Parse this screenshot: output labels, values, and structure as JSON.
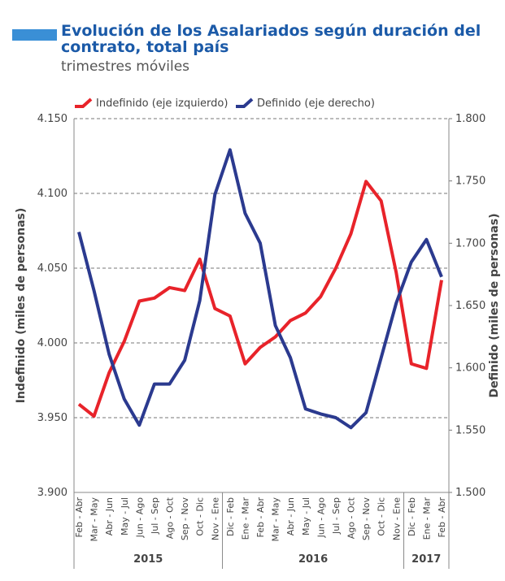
{
  "chart_data": {
    "type": "line",
    "title": "Evolución de los Asalariados según duración del contrato, total país",
    "subtitle": "trimestres móviles",
    "y_label": "Indefinido (miles de personas)",
    "y2_label": "Definido (miles de personas)",
    "categories": [
      "Feb - Abr",
      "Mar - May",
      "Abr - Jun",
      "May - Jul",
      "Jun - Ago",
      "Jul - Sep",
      "Ago - Oct",
      "Sep - Nov",
      "Oct - Dic",
      "Nov - Ene",
      "Dic - Feb",
      "Ene - Mar",
      "Feb - Abr",
      "Mar - May",
      "Abr - Jun",
      "May - Jul",
      "Jun - Ago",
      "Jul - Sep",
      "Ago - Oct",
      "Sep - Nov",
      "Oct - Dic",
      "Nov - Ene",
      "Dic - Feb",
      "Ene - Mar",
      "Feb - Abr"
    ],
    "year_groups": [
      {
        "label": "2015",
        "count": 10
      },
      {
        "label": "2016",
        "count": 12
      },
      {
        "label": "2017",
        "count": 3
      }
    ],
    "series": [
      {
        "name": "Indefinido (eje izquierdo)",
        "color": "#e8232a",
        "axis": "y",
        "values": [
          3959,
          3951,
          3980,
          4001,
          4028,
          4030,
          4037,
          4035,
          4056,
          4023,
          4018,
          3986,
          3997,
          4004,
          4015,
          4020,
          4031,
          4050,
          4073,
          4108,
          4095,
          4047,
          3986,
          3983,
          4042
        ]
      },
      {
        "name": "Definido (eje derecho)",
        "color": "#2b3a8f",
        "axis": "y2",
        "values": [
          1709,
          1662,
          1611,
          1575,
          1554,
          1587,
          1587,
          1606,
          1654,
          1739,
          1775,
          1724,
          1700,
          1634,
          1608,
          1567,
          1563,
          1560,
          1552,
          1564,
          1608,
          1652,
          1685,
          1703,
          1673
        ]
      }
    ],
    "ylim": [
      3900,
      4150
    ],
    "yticks": [
      {
        "value": 3900,
        "label": "3.900"
      },
      {
        "value": 3950,
        "label": "3.950"
      },
      {
        "value": 4000,
        "label": "4.000"
      },
      {
        "value": 4050,
        "label": "4.050"
      },
      {
        "value": 4100,
        "label": "4.100"
      },
      {
        "value": 4150,
        "label": "4.150"
      }
    ],
    "y2lim": [
      1500,
      1800
    ],
    "y2ticks": [
      {
        "value": 1500,
        "label": "1.500"
      },
      {
        "value": 1550,
        "label": "1.550"
      },
      {
        "value": 1600,
        "label": "1.600"
      },
      {
        "value": 1650,
        "label": "1.650"
      },
      {
        "value": 1700,
        "label": "1.700"
      },
      {
        "value": 1750,
        "label": "1.750"
      },
      {
        "value": 1800,
        "label": "1.800"
      }
    ],
    "grid": true,
    "legend": "top"
  }
}
